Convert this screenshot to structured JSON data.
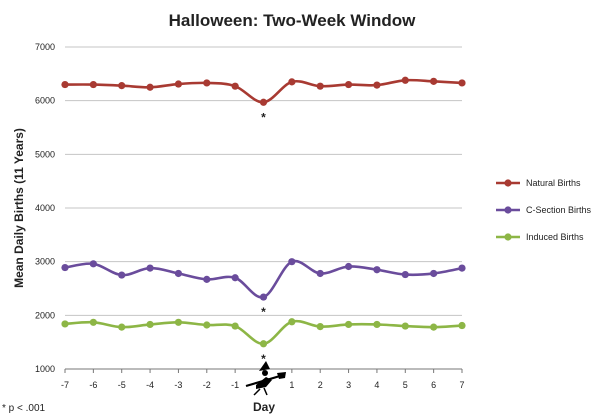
{
  "chart_data": {
    "type": "line",
    "title": "Halloween: Two-Week Window",
    "xlabel": "Day",
    "ylabel": "Mean Daily Births (11 Years)",
    "footnote": "* p < .001",
    "x": [
      -7,
      -6,
      -5,
      -4,
      -3,
      -2,
      -1,
      0,
      1,
      2,
      3,
      4,
      5,
      6,
      7
    ],
    "x_tick_labels": [
      "-7",
      "-6",
      "-5",
      "-4",
      "-3",
      "-2",
      "-1",
      "",
      "1",
      "2",
      "3",
      "4",
      "5",
      "6",
      "7"
    ],
    "y_ticks": [
      "1000",
      "2000",
      "3000",
      "4000",
      "5000",
      "6000",
      "7000"
    ],
    "ylim": [
      1000,
      7000
    ],
    "grid": true,
    "legend_position": "right",
    "x0_marker_icon": "witch-on-broom-icon",
    "significance_marker": "*",
    "series": [
      {
        "name": "Natural Births",
        "color": "#A83A32",
        "values": [
          6300,
          6300,
          6280,
          6250,
          6310,
          6330,
          6270,
          5970,
          6350,
          6270,
          6300,
          6290,
          6380,
          6360,
          6330
        ]
      },
      {
        "name": "C-Section Births",
        "color": "#6A4C9C",
        "values": [
          2890,
          2960,
          2750,
          2880,
          2780,
          2670,
          2700,
          2340,
          3000,
          2780,
          2910,
          2850,
          2760,
          2780,
          2880
        ]
      },
      {
        "name": "Induced Births",
        "color": "#8DB646",
        "values": [
          1840,
          1870,
          1780,
          1830,
          1870,
          1820,
          1800,
          1470,
          1880,
          1790,
          1830,
          1830,
          1800,
          1780,
          1810
        ]
      }
    ]
  }
}
